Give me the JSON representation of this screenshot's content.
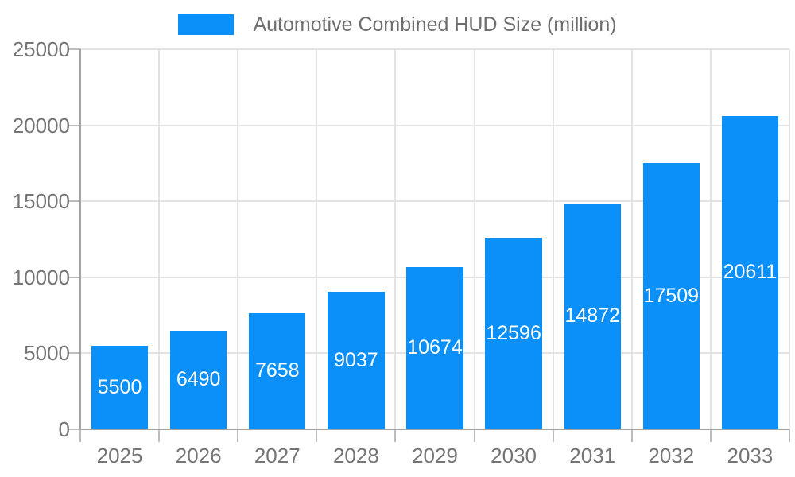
{
  "chart_data": {
    "type": "bar",
    "title": "",
    "legend": "Automotive Combined HUD Size (million)",
    "legend_position": "top-center",
    "categories": [
      "2025",
      "2026",
      "2027",
      "2028",
      "2029",
      "2030",
      "2031",
      "2032",
      "2033"
    ],
    "values": [
      5500,
      6490,
      7658,
      9037,
      10674,
      12596,
      14872,
      17509,
      20611
    ],
    "xlabel": "",
    "ylabel": "",
    "ylim": [
      0,
      25000
    ],
    "yticks": [
      0,
      5000,
      10000,
      15000,
      20000,
      25000
    ],
    "grid": true,
    "value_labels": "inside-center",
    "colors": {
      "bar": "#0A90F8",
      "grid": "#E3E3E3",
      "tick": "#BDBDBD",
      "axis": "#A3A3A3",
      "axis_label": "#757575",
      "legend_label": "#6E6E6E",
      "value_label": "#FFFFFF",
      "background": "#FFFFFF"
    }
  }
}
